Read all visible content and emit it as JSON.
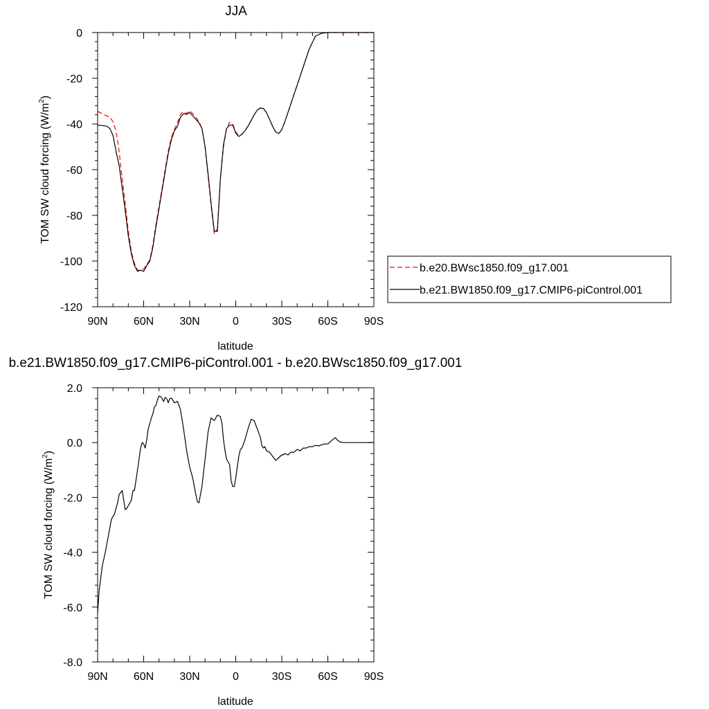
{
  "chart_data": [
    {
      "type": "line",
      "title": "JJA",
      "xlabel": "latitude",
      "ylabel_main": "TOM SW cloud forcing (W/m",
      "ylabel_sup": "2",
      "ylabel_tail": ")",
      "xlim": [
        90,
        -90
      ],
      "ylim": [
        -120,
        0
      ],
      "xticks": [
        {
          "value": 90,
          "label": "90N"
        },
        {
          "value": 60,
          "label": "60N"
        },
        {
          "value": 30,
          "label": "30N"
        },
        {
          "value": 0,
          "label": "0"
        },
        {
          "value": -30,
          "label": "30S"
        },
        {
          "value": -60,
          "label": "60S"
        },
        {
          "value": -90,
          "label": "90S"
        }
      ],
      "yticks": [
        {
          "value": 0,
          "label": "0"
        },
        {
          "value": -20,
          "label": "-20"
        },
        {
          "value": -40,
          "label": "-40"
        },
        {
          "value": -60,
          "label": "-60"
        },
        {
          "value": -80,
          "label": "-80"
        },
        {
          "value": -100,
          "label": "-100"
        },
        {
          "value": -120,
          "label": "-120"
        }
      ],
      "legend": {
        "placement": "right"
      },
      "series": [
        {
          "name": "b.e20.BWsc1850.f09_g17.001",
          "color": "#ff0000",
          "dash": "dashed",
          "x": [
            90,
            87,
            84,
            82,
            80,
            78,
            76,
            74,
            72,
            70,
            68,
            66,
            64,
            62,
            60,
            58,
            56,
            54,
            52,
            50,
            48,
            46,
            44,
            42,
            40,
            38,
            36,
            34,
            32,
            30,
            28,
            26,
            24,
            22,
            20,
            18,
            16,
            14,
            12,
            10,
            8,
            6,
            4,
            2,
            0,
            -2,
            -4,
            -6,
            -8,
            -10,
            -12,
            -14,
            -16,
            -18,
            -20,
            -22,
            -24,
            -26,
            -28,
            -30,
            -32,
            -34,
            -36,
            -38,
            -40,
            -44,
            -48,
            -52,
            -56,
            -60,
            -62,
            -64,
            -66,
            -68,
            -70,
            -75,
            -80,
            -85,
            -90
          ],
          "y": [
            -34.5,
            -35.5,
            -36.5,
            -37,
            -39,
            -43,
            -52,
            -64,
            -75,
            -87,
            -96,
            -101,
            -104,
            -104,
            -103.5,
            -101.5,
            -99.5,
            -93,
            -84,
            -76,
            -68,
            -60,
            -52,
            -46,
            -42.5,
            -39.5,
            -35.8,
            -34.5,
            -35.5,
            -34.2,
            -35.5,
            -37,
            -39,
            -42,
            -50,
            -63,
            -76,
            -88,
            -86,
            -64,
            -50,
            -42,
            -39.2,
            -40,
            -43.5,
            -45.2,
            -44.5,
            -43,
            -41,
            -38.5,
            -36,
            -34,
            -33,
            -33.2,
            -35,
            -38,
            -41,
            -43.5,
            -44.2,
            -42.5,
            -39,
            -35,
            -31,
            -27,
            -23,
            -15,
            -7,
            -1.5,
            -0.3,
            0,
            0,
            0,
            0,
            0,
            0,
            0,
            0,
            0,
            0
          ]
        },
        {
          "name": "b.e21.BW1850.f09_g17.CMIP6-piControl.001",
          "color": "#000000",
          "dash": "solid",
          "x": [
            90,
            87,
            84,
            82,
            80,
            78,
            76,
            74,
            72,
            70,
            68,
            66,
            64,
            62,
            60,
            58,
            56,
            54,
            52,
            50,
            48,
            46,
            44,
            42,
            40,
            38,
            36,
            34,
            32,
            30,
            28,
            26,
            24,
            22,
            20,
            18,
            16,
            14,
            12,
            10,
            8,
            6,
            4,
            2,
            0,
            -2,
            -4,
            -6,
            -8,
            -10,
            -12,
            -14,
            -16,
            -18,
            -20,
            -22,
            -24,
            -26,
            -28,
            -30,
            -32,
            -34,
            -36,
            -38,
            -40,
            -44,
            -48,
            -52,
            -56,
            -60,
            -62,
            -64,
            -66,
            -68,
            -70,
            -75,
            -80,
            -85,
            -90
          ],
          "y": [
            -40.5,
            -40.7,
            -41,
            -42,
            -45,
            -52,
            -58,
            -68,
            -78,
            -89,
            -97,
            -102,
            -104.5,
            -104,
            -104.5,
            -102,
            -100,
            -94,
            -85,
            -77,
            -69,
            -61,
            -53,
            -47,
            -43,
            -41,
            -37,
            -35.5,
            -35.8,
            -35,
            -36.5,
            -38,
            -39.5,
            -42,
            -50,
            -62,
            -75,
            -87,
            -87,
            -64,
            -49,
            -42,
            -40.5,
            -40.5,
            -44,
            -45.5,
            -44.5,
            -43,
            -41,
            -38.5,
            -36,
            -34,
            -33,
            -33.2,
            -35,
            -38,
            -41,
            -43.5,
            -44.2,
            -42.5,
            -39,
            -35,
            -31,
            -27,
            -23,
            -15,
            -7,
            -1.5,
            -0.3,
            0,
            0,
            0,
            0,
            0,
            0,
            0,
            0,
            0,
            0
          ]
        }
      ]
    },
    {
      "type": "line",
      "title": "b.e21.BW1850.f09_g17.CMIP6-piControl.001 - b.e20.BWsc1850.f09_g17.001",
      "xlabel": "latitude",
      "ylabel_main": "TOM SW cloud forcing (W/m",
      "ylabel_sup": "2",
      "ylabel_tail": ")",
      "xlim": [
        90,
        -90
      ],
      "ylim": [
        -8,
        2
      ],
      "xticks": [
        {
          "value": 90,
          "label": "90N"
        },
        {
          "value": 60,
          "label": "60N"
        },
        {
          "value": 30,
          "label": "30N"
        },
        {
          "value": 0,
          "label": "0"
        },
        {
          "value": -30,
          "label": "30S"
        },
        {
          "value": -60,
          "label": "60S"
        },
        {
          "value": -90,
          "label": "90S"
        }
      ],
      "yticks": [
        {
          "value": 2,
          "label": "2.0"
        },
        {
          "value": 0,
          "label": "0.0"
        },
        {
          "value": -2,
          "label": "-2.0"
        },
        {
          "value": -4,
          "label": "-4.0"
        },
        {
          "value": -6,
          "label": "-6.0"
        },
        {
          "value": -8,
          "label": "-8.0"
        }
      ],
      "series": [
        {
          "color": "#000000",
          "dash": "solid",
          "x": [
            90,
            89,
            87,
            85,
            83,
            81,
            79,
            77,
            76,
            74,
            73,
            72,
            71,
            70,
            68,
            67,
            66,
            64,
            62,
            61,
            60,
            59,
            58,
            57,
            56,
            55,
            54,
            53,
            52,
            51,
            50,
            49,
            48,
            47,
            46,
            45,
            44,
            43,
            42,
            41,
            40,
            38,
            36,
            34,
            32,
            30,
            28,
            26,
            25,
            24,
            22,
            20,
            18,
            16,
            14,
            12,
            10,
            9,
            8,
            7,
            6,
            5,
            4,
            3,
            2,
            1,
            0,
            -1,
            -2,
            -3,
            -4,
            -6,
            -8,
            -10,
            -12,
            -14,
            -16,
            -17,
            -18,
            -19,
            -20,
            -22,
            -24,
            -26,
            -28,
            -30,
            -31,
            -32,
            -34,
            -36,
            -38,
            -40,
            -42,
            -44,
            -46,
            -48,
            -50,
            -52,
            -54,
            -56,
            -58,
            -60,
            -62,
            -64,
            -65,
            -66,
            -68,
            -70,
            -75,
            -80,
            -85,
            -90
          ],
          "y": [
            -6.2,
            -5.4,
            -4.5,
            -4.0,
            -3.4,
            -2.8,
            -2.6,
            -2.2,
            -1.9,
            -1.75,
            -2.1,
            -2.45,
            -2.4,
            -2.3,
            -2.1,
            -1.75,
            -1.75,
            -1.0,
            -0.2,
            0.0,
            -0.05,
            -0.2,
            0.1,
            0.5,
            0.7,
            0.9,
            1.05,
            1.3,
            1.35,
            1.55,
            1.7,
            1.68,
            1.6,
            1.5,
            1.65,
            1.6,
            1.45,
            1.6,
            1.62,
            1.55,
            1.45,
            1.5,
            1.2,
            0.5,
            -0.3,
            -0.9,
            -1.3,
            -1.9,
            -2.15,
            -2.2,
            -1.6,
            -0.6,
            0.4,
            0.9,
            0.8,
            1.0,
            0.95,
            0.7,
            0.1,
            -0.3,
            -0.6,
            -0.7,
            -0.8,
            -1.4,
            -1.6,
            -1.6,
            -1.3,
            -0.9,
            -0.5,
            -0.25,
            -0.2,
            0.1,
            0.5,
            0.85,
            0.8,
            0.5,
            0.2,
            -0.1,
            -0.2,
            -0.15,
            -0.3,
            -0.35,
            -0.5,
            -0.65,
            -0.55,
            -0.45,
            -0.45,
            -0.4,
            -0.45,
            -0.35,
            -0.35,
            -0.25,
            -0.3,
            -0.2,
            -0.2,
            -0.15,
            -0.15,
            -0.1,
            -0.12,
            -0.08,
            -0.05,
            -0.05,
            0.05,
            0.15,
            0.18,
            0.1,
            0.02,
            0.0,
            0.0,
            0.0,
            0.0,
            0.0
          ]
        }
      ]
    }
  ]
}
